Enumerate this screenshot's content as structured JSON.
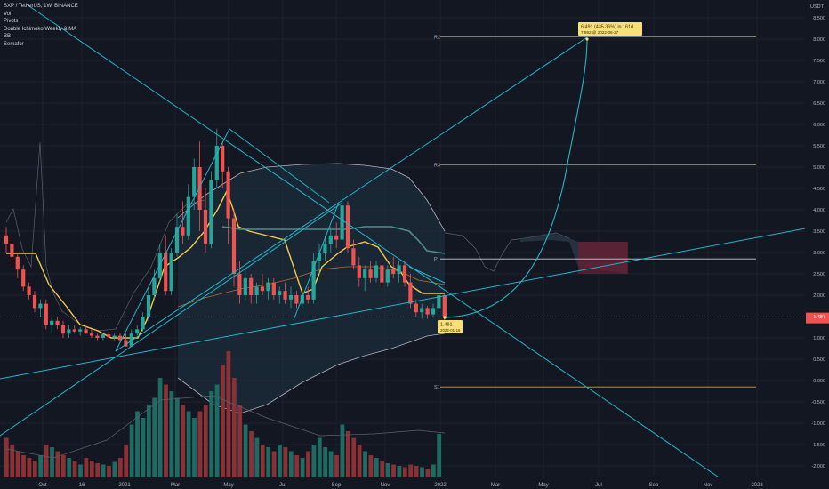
{
  "header": {
    "symbol_line": "SXP / TetherUS, 1W, BINANCE",
    "indicators": [
      "Vol",
      "Pivots",
      "Double Ichimoko Weekly & MA",
      "BB",
      "Semafor"
    ]
  },
  "colors": {
    "background": "#131722",
    "up": "#26a69a",
    "down": "#ef5350",
    "trendline": "#22b5c9",
    "pivot": "#f0921e",
    "ichimoku": "#f2c94c",
    "bb": "#b2b5be",
    "price_label": "#f7e07a"
  },
  "chart_data": {
    "type": "candlestick",
    "symbol": "SXP / TetherUS",
    "interval": "1W",
    "exchange": "BINANCE",
    "y_axis": {
      "currency": "USDT",
      "ticks": [
        "8.500",
        "8.000",
        "7.500",
        "7.000",
        "6.500",
        "6.000",
        "5.500",
        "5.000",
        "4.500",
        "4.000",
        "3.500",
        "3.000",
        "2.500",
        "2.000",
        "1.500",
        "1.000",
        "0.500",
        "0.000",
        "-0.500",
        "-1.000",
        "-1.500",
        "-2.000"
      ],
      "range": [
        -2.2,
        8.7
      ]
    },
    "x_axis": {
      "ticks": [
        "Oct",
        "16",
        "2021",
        "Mar",
        "May",
        "Jul",
        "Sep",
        "Nov",
        "2022",
        "Mar",
        "May",
        "Jul",
        "Sep",
        "Nov",
        "2023"
      ]
    },
    "pivot_levels": [
      {
        "name": "R2",
        "value": 8.05
      },
      {
        "name": "R3",
        "value": 5.05
      },
      {
        "name": "P",
        "value": 2.85
      },
      {
        "name": "S1",
        "value": -0.15
      }
    ],
    "current_price": {
      "value": "1.487",
      "label_value": "1.487"
    },
    "annotations": {
      "target_line1": "6.491 (435.36%) in 161d",
      "target_line2": "7.992 @ 2022-06-27",
      "entry_line1": "1.491",
      "entry_line2": "2022-01-16"
    },
    "candles": [
      [
        3.4,
        3.6,
        3.0,
        3.2
      ],
      [
        3.2,
        3.3,
        2.7,
        2.9
      ],
      [
        2.9,
        3.0,
        2.4,
        2.6
      ],
      [
        2.6,
        2.7,
        2.1,
        2.2
      ],
      [
        2.2,
        2.3,
        1.9,
        2.0
      ],
      [
        2.0,
        2.1,
        1.6,
        1.7
      ],
      [
        1.7,
        1.9,
        1.5,
        1.8
      ],
      [
        1.8,
        1.9,
        1.2,
        1.3
      ],
      [
        1.3,
        1.5,
        1.1,
        1.4
      ],
      [
        1.4,
        1.5,
        1.2,
        1.3
      ],
      [
        1.3,
        1.4,
        1.0,
        1.1
      ],
      [
        1.1,
        1.3,
        1.0,
        1.2
      ],
      [
        1.2,
        1.3,
        1.1,
        1.15
      ],
      [
        1.15,
        1.25,
        1.05,
        1.2
      ],
      [
        1.2,
        1.3,
        1.1,
        1.1
      ],
      [
        1.1,
        1.2,
        1.0,
        1.05
      ],
      [
        1.05,
        1.1,
        0.95,
        1.0
      ],
      [
        1.0,
        1.1,
        0.95,
        1.08
      ],
      [
        1.08,
        1.15,
        1.0,
        1.02
      ],
      [
        1.02,
        1.1,
        0.95,
        1.05
      ],
      [
        1.05,
        1.12,
        0.9,
        0.95
      ],
      [
        0.95,
        1.1,
        0.8,
        0.8
      ],
      [
        0.8,
        1.2,
        0.8,
        1.1
      ],
      [
        1.1,
        1.3,
        1.05,
        1.2
      ],
      [
        1.2,
        1.6,
        1.15,
        1.5
      ],
      [
        1.5,
        2.2,
        1.4,
        2.0
      ],
      [
        2.0,
        2.6,
        1.9,
        2.4
      ],
      [
        2.4,
        3.2,
        2.3,
        3.0
      ],
      [
        3.0,
        3.4,
        2.0,
        2.1
      ],
      [
        2.1,
        3.1,
        2.0,
        3.0
      ],
      [
        3.0,
        3.9,
        2.9,
        3.6
      ],
      [
        3.6,
        4.2,
        3.2,
        3.4
      ],
      [
        3.4,
        4.6,
        3.3,
        4.3
      ],
      [
        4.3,
        5.2,
        4.0,
        5.0
      ],
      [
        5.0,
        5.6,
        3.5,
        4.0
      ],
      [
        4.0,
        4.5,
        3.0,
        3.2
      ],
      [
        3.2,
        4.9,
        3.1,
        4.7
      ],
      [
        4.7,
        5.9,
        4.5,
        5.5
      ],
      [
        5.5,
        5.6,
        4.5,
        4.9
      ],
      [
        4.9,
        5.0,
        3.2,
        3.8
      ],
      [
        3.8,
        4.0,
        2.2,
        2.5
      ],
      [
        2.5,
        2.8,
        1.8,
        2.0
      ],
      [
        2.0,
        2.6,
        1.9,
        2.4
      ],
      [
        2.4,
        2.5,
        1.8,
        2.0
      ],
      [
        2.0,
        2.3,
        1.8,
        2.2
      ],
      [
        2.2,
        2.5,
        2.0,
        2.1
      ],
      [
        2.1,
        2.4,
        1.9,
        2.3
      ],
      [
        2.3,
        2.4,
        1.9,
        2.0
      ],
      [
        2.0,
        2.2,
        1.8,
        2.1
      ],
      [
        2.1,
        2.3,
        1.8,
        1.9
      ],
      [
        1.9,
        2.2,
        1.7,
        2.0
      ],
      [
        2.0,
        2.1,
        1.7,
        1.8
      ],
      [
        1.8,
        2.1,
        1.7,
        2.0
      ],
      [
        2.0,
        2.2,
        1.8,
        1.9
      ],
      [
        1.9,
        3.0,
        1.8,
        2.8
      ],
      [
        2.8,
        3.2,
        2.5,
        3.0
      ],
      [
        3.0,
        3.4,
        2.8,
        3.2
      ],
      [
        3.2,
        3.6,
        3.0,
        3.4
      ],
      [
        3.4,
        3.7,
        3.1,
        3.3
      ],
      [
        3.3,
        4.4,
        3.2,
        4.1
      ],
      [
        4.1,
        4.2,
        3.0,
        3.1
      ],
      [
        3.1,
        3.3,
        2.6,
        2.7
      ],
      [
        2.7,
        2.9,
        2.2,
        2.4
      ],
      [
        2.4,
        2.7,
        2.1,
        2.6
      ],
      [
        2.6,
        2.8,
        2.3,
        2.4
      ],
      [
        2.4,
        2.8,
        2.3,
        2.7
      ],
      [
        2.7,
        2.8,
        2.2,
        2.3
      ],
      [
        2.3,
        2.7,
        2.2,
        2.6
      ],
      [
        2.6,
        2.9,
        2.4,
        2.5
      ],
      [
        2.5,
        2.8,
        2.3,
        2.7
      ],
      [
        2.7,
        2.8,
        2.2,
        2.3
      ],
      [
        2.3,
        2.5,
        1.7,
        1.8
      ],
      [
        1.8,
        1.9,
        1.5,
        1.6
      ],
      [
        1.6,
        1.8,
        1.45,
        1.7
      ],
      [
        1.7,
        1.75,
        1.45,
        1.55
      ],
      [
        1.55,
        1.8,
        1.5,
        1.7
      ],
      [
        1.7,
        2.1,
        1.6,
        2.0
      ],
      [
        2.0,
        2.05,
        1.4,
        1.49
      ]
    ],
    "volumes": [
      0.35,
      0.3,
      0.25,
      0.22,
      0.2,
      0.18,
      0.22,
      0.3,
      0.28,
      0.25,
      0.22,
      0.2,
      0.18,
      0.15,
      0.2,
      0.18,
      0.16,
      0.15,
      0.14,
      0.17,
      0.2,
      0.3,
      0.45,
      0.55,
      0.5,
      0.6,
      0.65,
      0.8,
      0.75,
      0.7,
      0.65,
      0.6,
      0.55,
      0.5,
      0.55,
      0.6,
      0.7,
      0.75,
      0.9,
      1.0,
      0.8,
      0.6,
      0.45,
      0.4,
      0.35,
      0.3,
      0.28,
      0.25,
      0.3,
      0.28,
      0.25,
      0.22,
      0.2,
      0.25,
      0.3,
      0.35,
      0.28,
      0.25,
      0.22,
      0.45,
      0.4,
      0.35,
      0.3,
      0.25,
      0.22,
      0.2,
      0.18,
      0.16,
      0.15,
      0.14,
      0.13,
      0.15,
      0.14,
      0.13,
      0.12,
      0.15,
      0.38,
      0.05
    ]
  }
}
